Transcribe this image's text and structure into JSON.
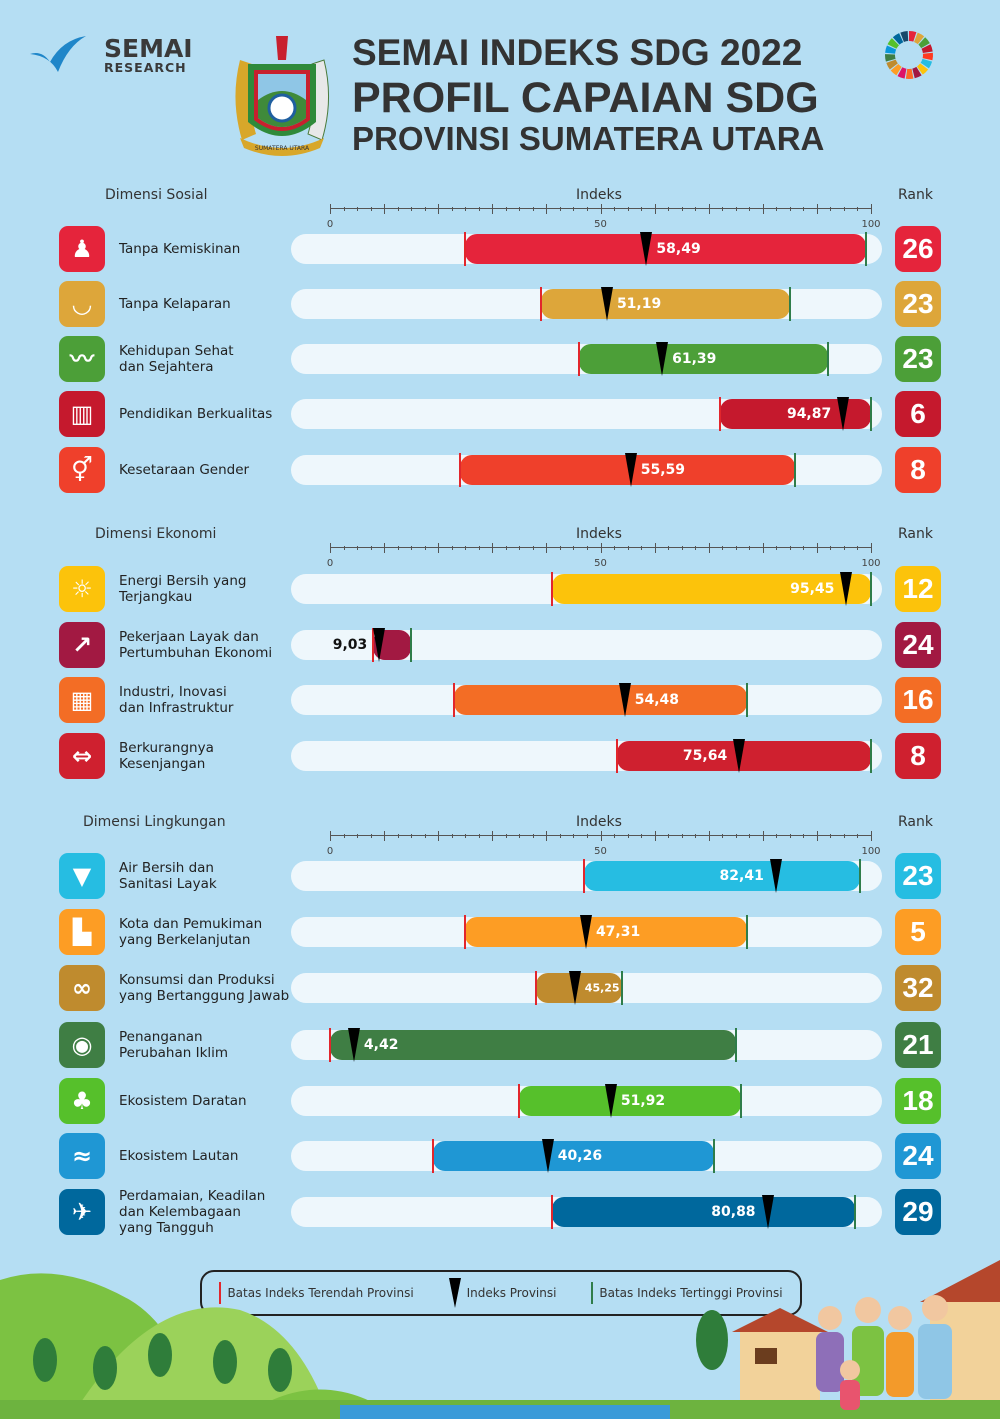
{
  "brand": {
    "name": "SEMAI",
    "sub": "RESEARCH"
  },
  "emblem_text": "SUMATERA UTARA",
  "header": {
    "line1": "SEMAI INDEKS SDG 2022",
    "line2": "PROFIL CAPAIAN SDG",
    "line3": "PROVINSI SUMATERA UTARA"
  },
  "columns": {
    "index": "Indeks",
    "rank": "Rank"
  },
  "legend": {
    "min": "Batas Indeks Terendah Provinsi",
    "province": "Indeks Provinsi",
    "max": "Batas Indeks Tertinggi Provinsi",
    "min_color": "#e2262c",
    "max_color": "#2f7d4a"
  },
  "chart_data": {
    "type": "range-bar",
    "xlim": [
      0,
      100
    ],
    "ticks": [
      "0",
      "50",
      "100"
    ],
    "xlabel": "Indeks",
    "sections": [
      {
        "title": "Dimensi Sosial",
        "rows": [
          {
            "label": "Tanpa Kemiskinan",
            "value": 58.49,
            "value_label": "58,49",
            "min": 25,
            "max": 99,
            "rank": "26",
            "color": "#e5243b",
            "icon": "family-icon"
          },
          {
            "label": "Tanpa Kelaparan",
            "value": 51.19,
            "value_label": "51,19",
            "min": 39,
            "max": 85,
            "rank": "23",
            "color": "#dda63a",
            "icon": "bowl-icon"
          },
          {
            "label": "Kehidupan Sehat\ndan Sejahtera",
            "value": 61.39,
            "value_label": "61,39",
            "min": 46,
            "max": 92,
            "rank": "23",
            "color": "#4c9f38",
            "icon": "heartbeat-icon"
          },
          {
            "label": "Pendidikan Berkualitas",
            "value": 94.87,
            "value_label": "94,87",
            "min": 72,
            "max": 100,
            "rank": "6",
            "color": "#c5192d",
            "icon": "book-icon"
          },
          {
            "label": "Kesetaraan Gender",
            "value": 55.59,
            "value_label": "55,59",
            "min": 24,
            "max": 86,
            "rank": "8",
            "color": "#ef402b",
            "icon": "gender-icon"
          }
        ]
      },
      {
        "title": "Dimensi Ekonomi",
        "rows": [
          {
            "label": "Energi Bersih yang\nTerjangkau",
            "value": 95.45,
            "value_label": "95,45",
            "min": 41,
            "max": 100,
            "rank": "12",
            "color": "#fcc30b",
            "icon": "sun-icon"
          },
          {
            "label": "Pekerjaan Layak dan\nPertumbuhan Ekonomi",
            "value": 9.03,
            "value_label": "9,03",
            "min": 8,
            "max": 15,
            "rank": "24",
            "color": "#a21942",
            "icon": "growth-chart-icon"
          },
          {
            "label": "Industri, Inovasi\ndan Infrastruktur",
            "value": 54.48,
            "value_label": "54,48",
            "min": 23,
            "max": 77,
            "rank": "16",
            "color": "#f36d25",
            "icon": "cubes-icon"
          },
          {
            "label": "Berkurangnya\nKesenjangan",
            "value": 75.64,
            "value_label": "75,64",
            "min": 53,
            "max": 100,
            "rank": "8",
            "color": "#cf202f",
            "icon": "equality-arrows-icon"
          }
        ]
      },
      {
        "title": "Dimensi Lingkungan",
        "rows": [
          {
            "label": "Air Bersih dan\nSanitasi Layak",
            "value": 82.41,
            "value_label": "82,41",
            "min": 47,
            "max": 98,
            "rank": "23",
            "color": "#26bde2",
            "icon": "water-glass-icon"
          },
          {
            "label": "Kota dan Pemukiman\nyang Berkelanjutan",
            "value": 47.31,
            "value_label": "47,31",
            "min": 25,
            "max": 77,
            "rank": "5",
            "color": "#fd9d24",
            "icon": "city-icon"
          },
          {
            "label": "Konsumsi dan Produksi\nyang Bertanggung Jawab",
            "value": 45.25,
            "value_label": "45,25",
            "min": 38,
            "max": 54,
            "rank": "32",
            "color": "#bf8b2e",
            "icon": "infinity-icon"
          },
          {
            "label": "Penanganan\nPerubahan Iklim",
            "value": 4.42,
            "value_label": "4,42",
            "min": 0,
            "max": 75,
            "rank": "21",
            "color": "#3f7e44",
            "icon": "eye-globe-icon"
          },
          {
            "label": "Ekosistem Daratan",
            "value": 51.92,
            "value_label": "51,92",
            "min": 35,
            "max": 76,
            "rank": "18",
            "color": "#56c02b",
            "icon": "tree-icon"
          },
          {
            "label": "Ekosistem Lautan",
            "value": 40.26,
            "value_label": "40,26",
            "min": 19,
            "max": 71,
            "rank": "24",
            "color": "#1f97d4",
            "icon": "fish-icon"
          },
          {
            "label": "Perdamaian, Keadilan\ndan Kelembagaan\nyang Tangguh",
            "value": 80.88,
            "value_label": "80,88",
            "min": 41,
            "max": 97,
            "rank": "29",
            "color": "#00689d",
            "icon": "dove-icon"
          }
        ]
      }
    ]
  }
}
